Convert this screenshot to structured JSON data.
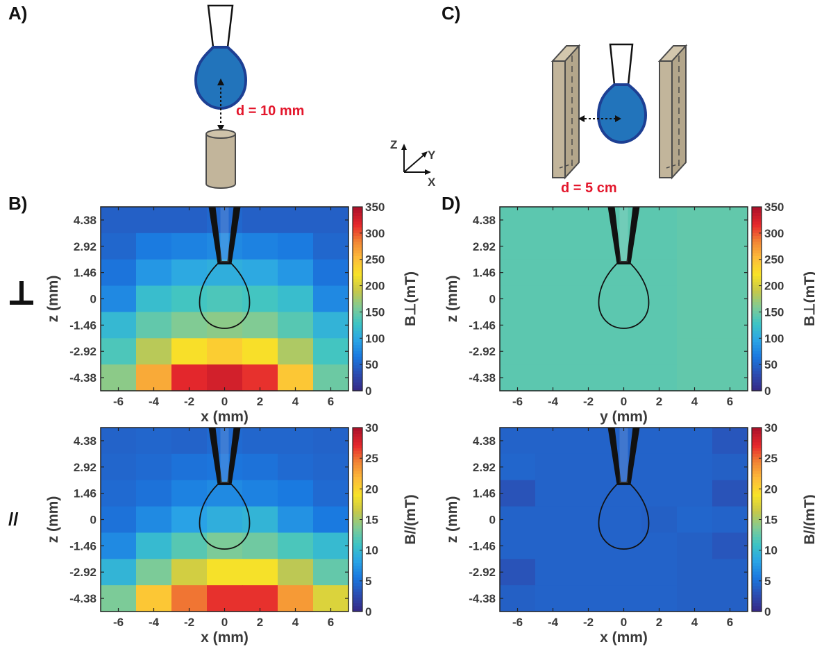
{
  "panels": {
    "A": {
      "label": "A)",
      "annotation": "d = 10 mm"
    },
    "B": {
      "label": "B)"
    },
    "C": {
      "label": "C)",
      "annotation": "d = 5 cm"
    },
    "D": {
      "label": "D)"
    }
  },
  "axes_triad": {
    "z": "Z",
    "y": "Y",
    "x": "X"
  },
  "row_symbols": {
    "perpendicular": "⊥",
    "parallel": "//"
  },
  "colors": {
    "colormap": [
      "#352a87",
      "#2b4fb4",
      "#1a79e0",
      "#2aa5e6",
      "#3dc4c5",
      "#7fcb96",
      "#c6c84a",
      "#f8e228",
      "#fdbc3a",
      "#f28534",
      "#e6282c",
      "#b0122a"
    ],
    "cylinder": "#c2b59b",
    "droplet": "#2274bb",
    "droplet_edge": "#1d3f93",
    "annotation_red": "#e3162b"
  },
  "chart_data": [
    {
      "id": "B-top",
      "type": "heatmap",
      "xlabel": "x (mm)",
      "ylabel": "z (mm)",
      "colorbar_label": "B⊥(mT)",
      "x": [
        -6,
        -4,
        -2,
        0,
        2,
        4,
        6
      ],
      "x_ticks": [
        "-6",
        "-4",
        "-2",
        "0",
        "2",
        "4",
        "6"
      ],
      "y": [
        4.38,
        2.92,
        1.46,
        0,
        -1.46,
        -2.92,
        -4.38
      ],
      "y_ticks": [
        "4.38",
        "2.92",
        "1.46",
        "0",
        "-1.46",
        "-2.92",
        "-4.38"
      ],
      "xlim": [
        -7,
        7
      ],
      "clim": [
        0,
        350
      ],
      "cticks": [
        "0",
        "50",
        "100",
        "150",
        "200",
        "250",
        "300",
        "350"
      ],
      "values": [
        [
          45,
          45,
          45,
          50,
          45,
          45,
          45
        ],
        [
          50,
          65,
          70,
          75,
          70,
          65,
          50
        ],
        [
          60,
          85,
          100,
          105,
          100,
          85,
          60
        ],
        [
          75,
          120,
          130,
          135,
          130,
          120,
          75
        ],
        [
          115,
          145,
          160,
          165,
          160,
          140,
          110
        ],
        [
          135,
          185,
          225,
          240,
          225,
          180,
          130
        ],
        [
          165,
          265,
          320,
          330,
          315,
          245,
          150
        ]
      ]
    },
    {
      "id": "B-bottom",
      "type": "heatmap",
      "xlabel": "x (mm)",
      "ylabel": "z (mm)",
      "colorbar_label": "B//(mT)",
      "x": [
        -6,
        -4,
        -2,
        0,
        2,
        4,
        6
      ],
      "x_ticks": [
        "-6",
        "-4",
        "-2",
        "0",
        "2",
        "4",
        "6"
      ],
      "y": [
        4.38,
        2.92,
        1.46,
        0,
        -1.46,
        -2.92,
        -4.38
      ],
      "y_ticks": [
        "4.38",
        "2.92",
        "1.46",
        "0",
        "-1.46",
        "-2.92",
        "-4.38"
      ],
      "xlim": [
        -7,
        7
      ],
      "clim": [
        0,
        30
      ],
      "cticks": [
        "0",
        "5",
        "10",
        "15",
        "20",
        "25",
        "30"
      ],
      "values": [
        [
          4.0,
          4.2,
          4.0,
          4.5,
          4.2,
          4.2,
          4.0
        ],
        [
          4.2,
          4.5,
          5.0,
          5.2,
          5.0,
          4.5,
          4.2
        ],
        [
          4.5,
          5.0,
          6.0,
          6.5,
          6.0,
          5.5,
          4.5
        ],
        [
          5.0,
          6.5,
          8.0,
          9.0,
          9.5,
          7.0,
          5.5
        ],
        [
          6.5,
          10.0,
          12.0,
          13.5,
          13.0,
          11.5,
          10.0
        ],
        [
          9.5,
          13.5,
          17.0,
          19.0,
          19.0,
          16.0,
          12.5
        ],
        [
          13.5,
          21.0,
          25.0,
          27.0,
          27.0,
          23.5,
          17.5
        ]
      ]
    },
    {
      "id": "D-top",
      "type": "heatmap",
      "xlabel": "y (mm)",
      "ylabel": "z (mm)",
      "colorbar_label": "B⊥(mT)",
      "x": [
        -6,
        -4,
        -2,
        0,
        2,
        4,
        6
      ],
      "x_ticks": [
        "-6",
        "-4",
        "-2",
        "0",
        "2",
        "4",
        "6"
      ],
      "y": [
        4.38,
        2.92,
        1.46,
        0,
        -1.46,
        -2.92,
        -4.38
      ],
      "y_ticks": [
        "4.38",
        "2.92",
        "1.46",
        "0",
        "-1.46",
        "-2.92",
        "-4.38"
      ],
      "xlim": [
        -7,
        7
      ],
      "clim": [
        0,
        350
      ],
      "cticks": [
        "0",
        "50",
        "100",
        "150",
        "200",
        "250",
        "300",
        "350"
      ],
      "values": [
        [
          142,
          142,
          142,
          142,
          142,
          145,
          145
        ],
        [
          142,
          142,
          142,
          142,
          142,
          145,
          145
        ],
        [
          142,
          142,
          142,
          142,
          142,
          145,
          145
        ],
        [
          142,
          142,
          142,
          142,
          142,
          145,
          145
        ],
        [
          142,
          142,
          142,
          142,
          142,
          145,
          145
        ],
        [
          142,
          142,
          142,
          142,
          142,
          145,
          145
        ],
        [
          142,
          142,
          142,
          142,
          142,
          145,
          145
        ]
      ]
    },
    {
      "id": "D-bottom",
      "type": "heatmap",
      "xlabel": "x (mm)",
      "ylabel": "z (mm)",
      "colorbar_label": "B//(mT)",
      "x": [
        -6,
        -4,
        -2,
        0,
        2,
        4,
        6
      ],
      "x_ticks": [
        "-6",
        "-4",
        "-2",
        "0",
        "2",
        "4",
        "6"
      ],
      "y": [
        4.38,
        2.92,
        1.46,
        0,
        -1.46,
        -2.92,
        -4.38
      ],
      "y_ticks": [
        "4.38",
        "2.92",
        "1.46",
        "0",
        "-1.46",
        "-2.92",
        "-4.38"
      ],
      "xlim": [
        -7,
        7
      ],
      "clim": [
        0,
        30
      ],
      "cticks": [
        "0",
        "5",
        "10",
        "15",
        "20",
        "25",
        "30"
      ],
      "values": [
        [
          4.0,
          4.0,
          4.0,
          4.0,
          4.0,
          4.0,
          3.2
        ],
        [
          4.2,
          4.0,
          4.0,
          4.0,
          4.0,
          4.0,
          3.8
        ],
        [
          3.0,
          4.0,
          4.0,
          4.0,
          4.0,
          4.0,
          3.0
        ],
        [
          4.0,
          4.0,
          4.0,
          4.0,
          3.8,
          4.2,
          4.0
        ],
        [
          4.0,
          4.0,
          4.0,
          4.0,
          4.0,
          3.8,
          3.2
        ],
        [
          3.0,
          4.0,
          4.0,
          4.0,
          4.0,
          3.8,
          3.8
        ],
        [
          3.8,
          4.0,
          4.0,
          4.0,
          4.0,
          3.8,
          3.8
        ]
      ]
    }
  ]
}
